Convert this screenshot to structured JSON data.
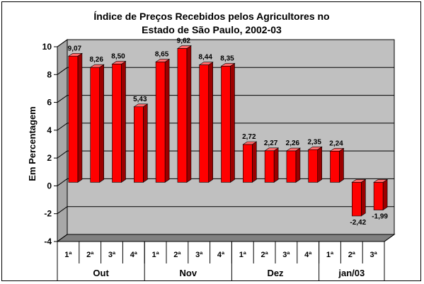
{
  "chart_data": {
    "type": "bar",
    "title_line1": "Índice de Preços Recebidos pelos Agricultores no",
    "title_line2": "Estado de São Paulo, 2002-03",
    "ylabel": "Em Percentagem",
    "ylim": [
      -4,
      10
    ],
    "yticks": [
      -4,
      -2,
      0,
      2,
      4,
      6,
      8,
      10
    ],
    "grid": "horizontal",
    "categories": [
      "1ª",
      "2ª",
      "3ª",
      "4ª",
      "1ª",
      "2ª",
      "3ª",
      "4ª",
      "1ª",
      "2ª",
      "3ª",
      "4ª",
      "1ª",
      "2ª",
      "3ª"
    ],
    "groups": [
      {
        "name": "Out",
        "count": 4
      },
      {
        "name": "Nov",
        "count": 4
      },
      {
        "name": "Dez",
        "count": 4
      },
      {
        "name": "jan/03",
        "count": 3
      }
    ],
    "values": [
      9.07,
      8.26,
      8.5,
      5.43,
      8.65,
      9.62,
      8.44,
      8.35,
      2.72,
      2.27,
      2.26,
      2.35,
      2.24,
      -2.42,
      -1.99
    ],
    "value_labels": [
      "9,07",
      "8,26",
      "8,50",
      "5,43",
      "8,65",
      "9,62",
      "8,44",
      "8,35",
      "2,72",
      "2,27",
      "2,26",
      "2,35",
      "2,24",
      "-2,42",
      "-1,99"
    ],
    "colors": {
      "bar_front": "#ff0000",
      "bar_side": "#9b0000",
      "bar_top": "#ff6a6a",
      "wall": "#c0c0c0",
      "floor": "#808080"
    }
  }
}
